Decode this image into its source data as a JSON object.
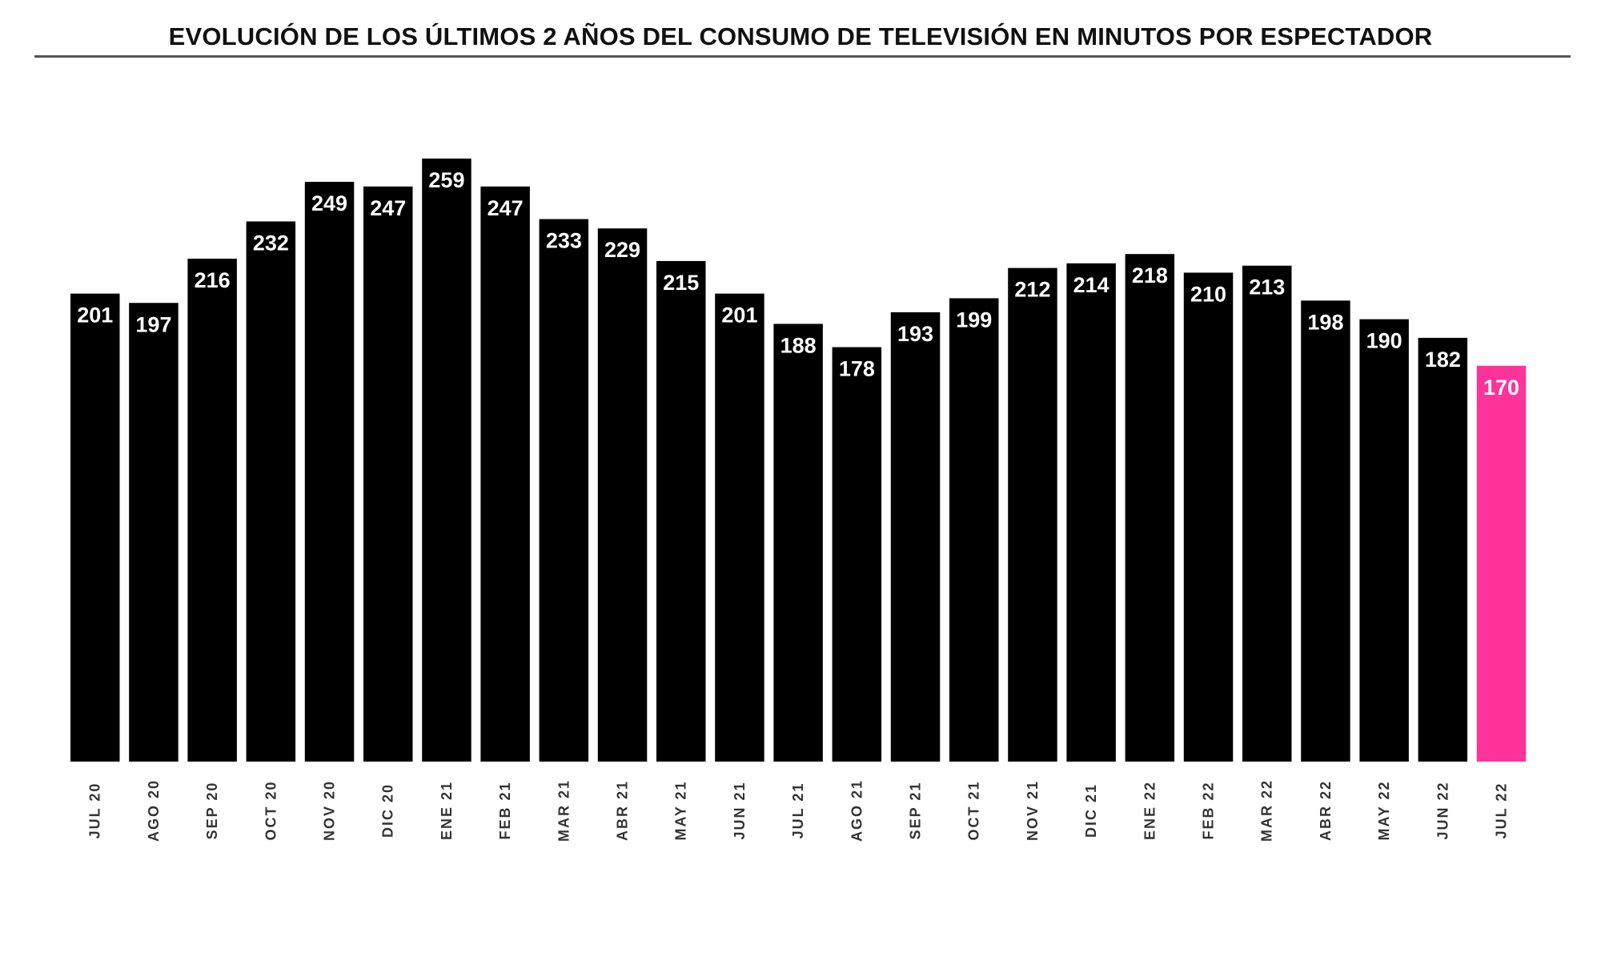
{
  "chart_data": {
    "type": "bar",
    "title": "EVOLUCIÓN DE LOS ÚLTIMOS 2 AÑOS DEL CONSUMO DE TELEVISIÓN EN MINUTOS POR ESPECTADOR",
    "xlabel": "",
    "ylabel": "",
    "ylim": [
      0,
      259
    ],
    "grid": false,
    "categories": [
      "JUL 20",
      "AGO 20",
      "SEP 20",
      "OCT 20",
      "NOV 20",
      "DIC 20",
      "ENE 21",
      "FEB 21",
      "MAR 21",
      "ABR 21",
      "MAY 21",
      "JUN 21",
      "JUL 21",
      "AGO 21",
      "SEP 21",
      "OCT 21",
      "NOV 21",
      "DIC 21",
      "ENE 22",
      "FEB 22",
      "MAR 22",
      "ABR 22",
      "MAY 22",
      "JUN 22",
      "JUL 22"
    ],
    "values": [
      201,
      197,
      216,
      232,
      249,
      247,
      259,
      247,
      233,
      229,
      215,
      201,
      188,
      178,
      193,
      199,
      212,
      214,
      218,
      210,
      213,
      198,
      190,
      182,
      170
    ],
    "colors": {
      "default": "#000000",
      "highlight": "#ff3399",
      "label": "#ffffff",
      "tick": "#333333"
    },
    "highlight_index": 24
  }
}
